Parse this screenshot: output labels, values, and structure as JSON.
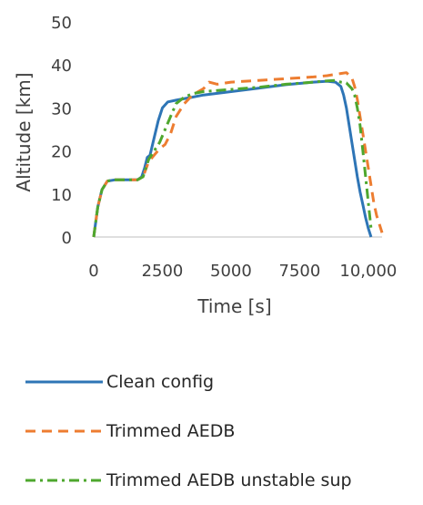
{
  "chart_data": {
    "type": "line",
    "title": "",
    "xlabel": "Time [s]",
    "ylabel": "Altitude [km]",
    "xlim": [
      0,
      10500
    ],
    "ylim": [
      0,
      50
    ],
    "xticks": [
      0,
      2500,
      5000,
      7500,
      10000
    ],
    "xtick_labels": [
      "0",
      "2500",
      "5000",
      "7500",
      "10,000"
    ],
    "yticks": [
      0,
      10,
      20,
      30,
      40,
      50
    ],
    "ytick_labels": [
      "0",
      "10",
      "20",
      "30",
      "40",
      "50"
    ],
    "grid": false,
    "legend_position": "bottom",
    "series": [
      {
        "name": "Clean config",
        "color": "#2e75b6",
        "style": "solid",
        "x": [
          0,
          150,
          300,
          500,
          800,
          1200,
          1600,
          1750,
          1850,
          1950,
          2050,
          2200,
          2350,
          2500,
          2700,
          3000,
          3500,
          4000,
          5000,
          6000,
          7000,
          8000,
          8500,
          8800,
          9000,
          9100,
          9200,
          9300,
          9400,
          9500,
          9600,
          9700,
          9800,
          9900,
          10000,
          10100
        ],
        "y": [
          0,
          7,
          11,
          13,
          13.3,
          13.3,
          13.3,
          14,
          16,
          18.5,
          19,
          23,
          27,
          30,
          31.4,
          31.8,
          32.4,
          33,
          33.8,
          34.6,
          35.4,
          36,
          36.2,
          36,
          35,
          33,
          30,
          26,
          22,
          18,
          14,
          10.5,
          7.5,
          4.5,
          2,
          0
        ]
      },
      {
        "name": "Trimmed AEDB",
        "color": "#ed7d31",
        "style": "dashed",
        "x": [
          0,
          150,
          300,
          500,
          800,
          1200,
          1600,
          1800,
          2000,
          2200,
          2400,
          2600,
          2800,
          3000,
          3300,
          3600,
          4000,
          4200,
          4500,
          5000,
          6000,
          7000,
          8000,
          8500,
          9000,
          9200,
          9400,
          9500,
          9600,
          9700,
          9800,
          9900,
          10000,
          10100,
          10200,
          10300,
          10400,
          10500
        ],
        "y": [
          0,
          7,
          11,
          13,
          13.3,
          13.3,
          13.3,
          14,
          17.5,
          19,
          20.5,
          21.5,
          24,
          28,
          31,
          33,
          34.5,
          36,
          35.5,
          36,
          36.4,
          36.8,
          37.2,
          37.5,
          38,
          38.2,
          37,
          35,
          32,
          28,
          24,
          20,
          16,
          12,
          8,
          5,
          3,
          1
        ]
      },
      {
        "name": "Trimmed AEDB unstable sup",
        "color": "#4ea72e",
        "style": "dashdot",
        "x": [
          0,
          150,
          300,
          500,
          800,
          1200,
          1600,
          1800,
          2000,
          2200,
          2400,
          2600,
          2800,
          3000,
          3300,
          3600,
          4000,
          5000,
          6000,
          7000,
          8000,
          8500,
          8800,
          9000,
          9200,
          9400,
          9500,
          9600,
          9700,
          9800,
          9900,
          10000,
          10100
        ],
        "y": [
          0,
          7,
          11,
          13,
          13.3,
          13.3,
          13.3,
          14,
          18,
          20,
          22,
          25,
          28,
          31,
          32.5,
          33.3,
          33.8,
          34.3,
          34.8,
          35.5,
          36,
          36.3,
          36.4,
          36,
          35.8,
          34.5,
          33,
          30,
          26,
          20,
          14,
          8,
          2
        ]
      }
    ]
  }
}
